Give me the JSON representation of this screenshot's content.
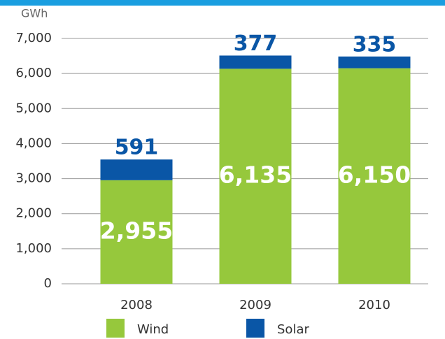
{
  "chart_data": {
    "type": "stacked_bar",
    "y_axis_label": "GWh",
    "categories": [
      "2008",
      "2009",
      "2010"
    ],
    "series": [
      {
        "name": "Wind",
        "color": "#96c83c",
        "values": [
          2955,
          6135,
          6150
        ],
        "value_labels": [
          "2,955",
          "6,135",
          "6,150"
        ]
      },
      {
        "name": "Solar",
        "color": "#0a56a6",
        "values": [
          591,
          377,
          335
        ],
        "value_labels": [
          "591",
          "377",
          "335"
        ]
      }
    ],
    "ylim": [
      0,
      7000
    ],
    "yticks": [
      0,
      {
        "value": 1000,
        "label": "1,000"
      },
      {
        "value": 2000,
        "label": "2,000"
      },
      {
        "value": 3000,
        "label": "3,000"
      },
      {
        "value": 4000,
        "label": "4,000"
      },
      {
        "value": 5000,
        "label": "5,000"
      },
      {
        "value": 6000,
        "label": "6,000"
      },
      {
        "value": 7000,
        "label": "7,000"
      }
    ],
    "grid": true,
    "legend": "bottom"
  }
}
